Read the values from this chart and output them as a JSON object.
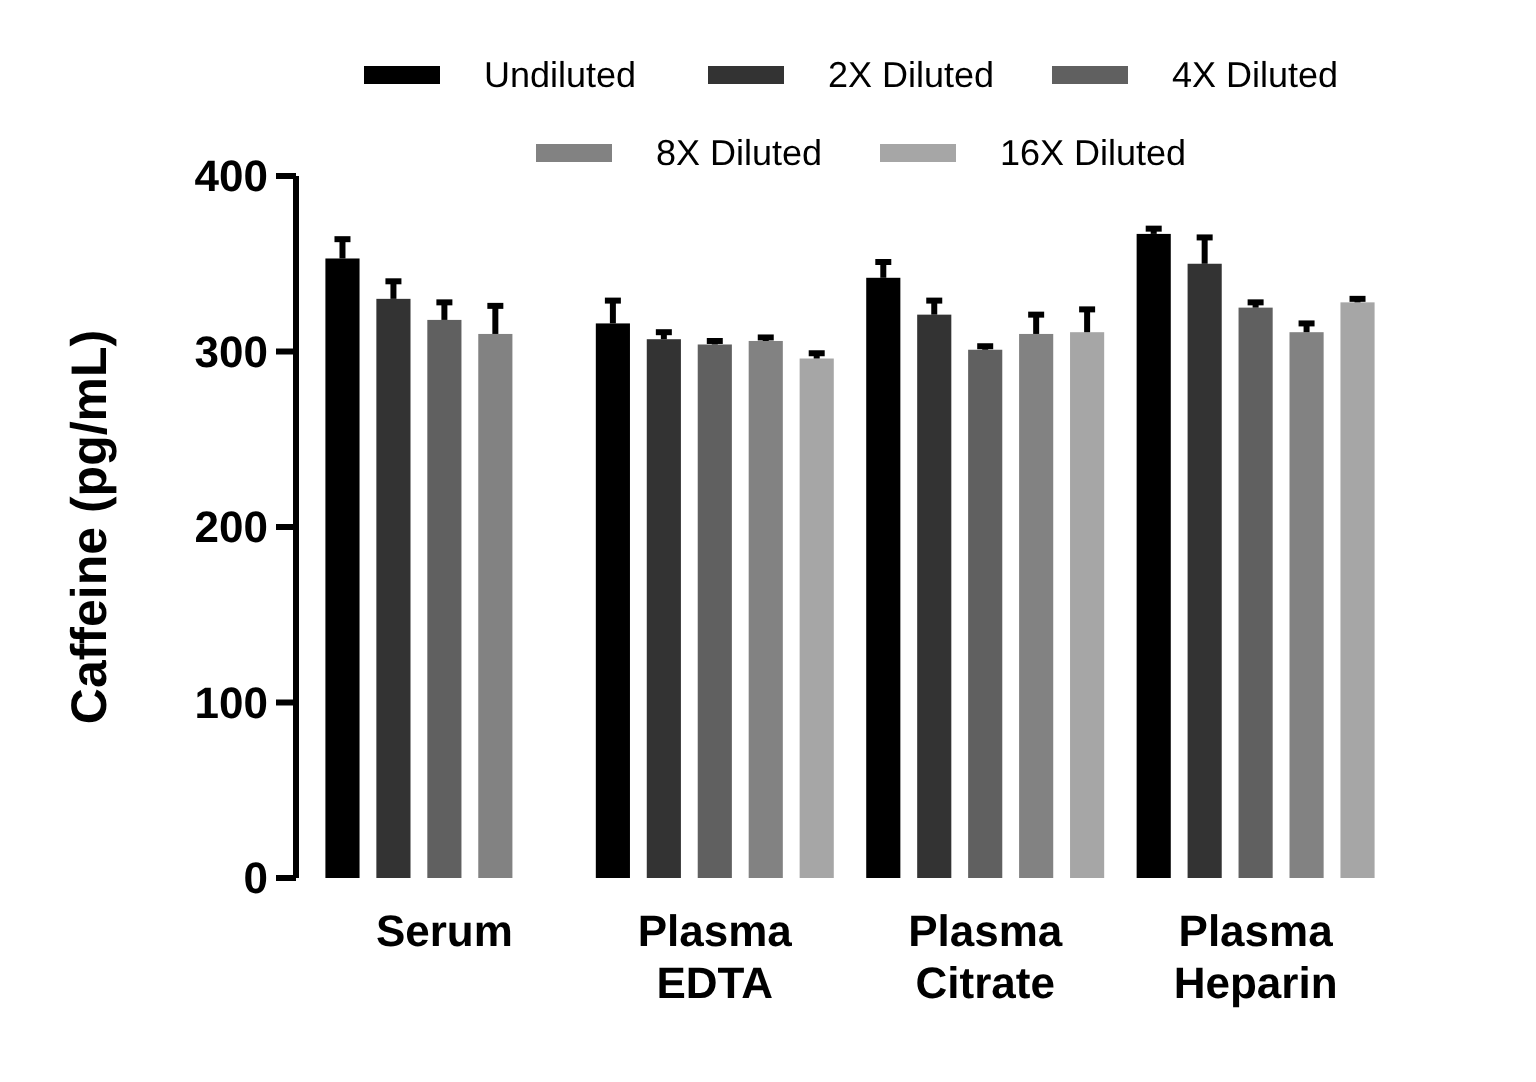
{
  "chart_data": {
    "type": "bar",
    "ylabel": "Caffeine (pg/mL)",
    "categories": [
      "Serum",
      "Plasma\nEDTA",
      "Plasma\nCitrate",
      "Plasma\nHeparin"
    ],
    "ylim": [
      0,
      400
    ],
    "yticks": [
      0,
      100,
      200,
      300,
      400
    ],
    "grid": false,
    "legend": "top",
    "series": [
      {
        "name": "Undiluted",
        "color": "#000000",
        "values": [
          353,
          316,
          342,
          367
        ],
        "errors": [
          11,
          13,
          9,
          3
        ]
      },
      {
        "name": "2X Diluted",
        "color": "#333333",
        "values": [
          330,
          307,
          321,
          350
        ],
        "errors": [
          10,
          4,
          8,
          15
        ]
      },
      {
        "name": "4X Diluted",
        "color": "#606060",
        "values": [
          318,
          304,
          301,
          325
        ],
        "errors": [
          10,
          2,
          2,
          3
        ]
      },
      {
        "name": "8X Diluted",
        "color": "#828282",
        "values": [
          310,
          306,
          310,
          311
        ],
        "errors": [
          16,
          2,
          11,
          5
        ]
      },
      {
        "name": "16X Diluted",
        "color": "#a6a6a6",
        "values": [
          null,
          296,
          311,
          328
        ],
        "errors": [
          null,
          3,
          13,
          2
        ]
      }
    ]
  }
}
